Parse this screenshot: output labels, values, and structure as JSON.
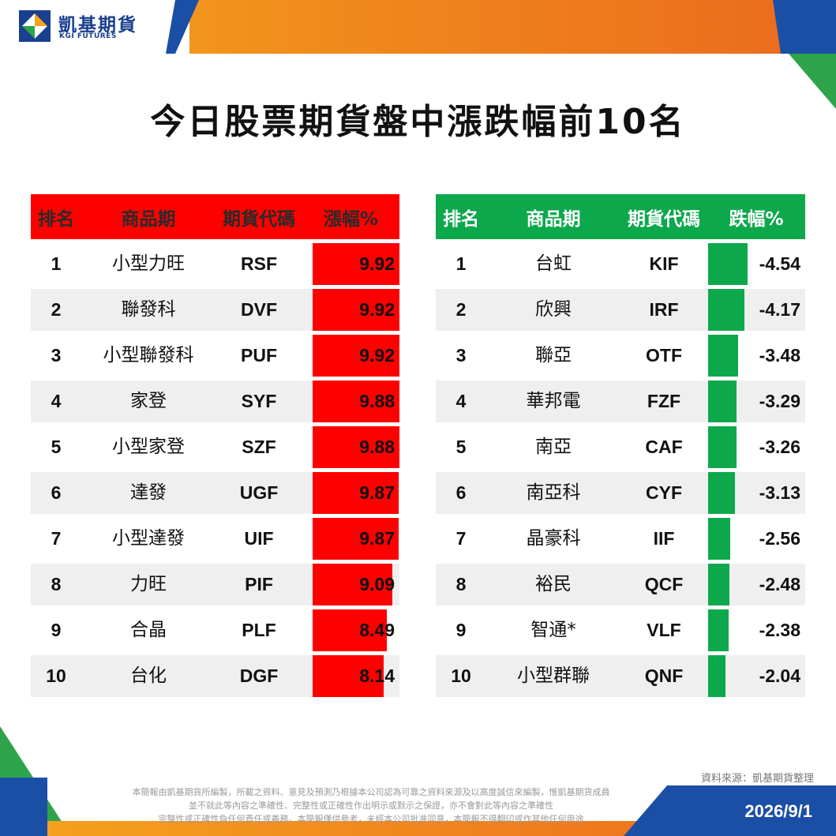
{
  "brand": {
    "name_cn": "凱基期貨",
    "name_en": "KGI FUTURES"
  },
  "title": "今日股票期貨盤中漲跌幅前10名",
  "rise_table": {
    "headers": [
      "排名",
      "商品期",
      "期貨代碼",
      "漲幅%"
    ],
    "rows": [
      {
        "rank": "1",
        "name": "小型力旺",
        "code": "RSF",
        "pct": "9.92"
      },
      {
        "rank": "2",
        "name": "聯發科",
        "code": "DVF",
        "pct": "9.92"
      },
      {
        "rank": "3",
        "name": "小型聯發科",
        "code": "PUF",
        "pct": "9.92"
      },
      {
        "rank": "4",
        "name": "家登",
        "code": "SYF",
        "pct": "9.88"
      },
      {
        "rank": "5",
        "name": "小型家登",
        "code": "SZF",
        "pct": "9.88"
      },
      {
        "rank": "6",
        "name": "達發",
        "code": "UGF",
        "pct": "9.87"
      },
      {
        "rank": "7",
        "name": "小型達發",
        "code": "UIF",
        "pct": "9.87"
      },
      {
        "rank": "8",
        "name": "力旺",
        "code": "PIF",
        "pct": "9.09"
      },
      {
        "rank": "9",
        "name": "合晶",
        "code": "PLF",
        "pct": "8.49"
      },
      {
        "rank": "10",
        "name": "台化",
        "code": "DGF",
        "pct": "8.14"
      }
    ]
  },
  "fall_table": {
    "headers": [
      "排名",
      "商品期",
      "期貨代碼",
      "跌幅%"
    ],
    "rows": [
      {
        "rank": "1",
        "name": "台虹",
        "code": "KIF",
        "pct": "-4.54"
      },
      {
        "rank": "2",
        "name": "欣興",
        "code": "IRF",
        "pct": "-4.17"
      },
      {
        "rank": "3",
        "name": "聯亞",
        "code": "OTF",
        "pct": "-3.48"
      },
      {
        "rank": "4",
        "name": "華邦電",
        "code": "FZF",
        "pct": "-3.29"
      },
      {
        "rank": "5",
        "name": "南亞",
        "code": "CAF",
        "pct": "-3.26"
      },
      {
        "rank": "6",
        "name": "南亞科",
        "code": "CYF",
        "pct": "-3.13"
      },
      {
        "rank": "7",
        "name": "晶豪科",
        "code": "IIF",
        "pct": "-2.56"
      },
      {
        "rank": "8",
        "name": "裕民",
        "code": "QCF",
        "pct": "-2.48"
      },
      {
        "rank": "9",
        "name": "智通*",
        "code": "VLF",
        "pct": "-2.38"
      },
      {
        "rank": "10",
        "name": "小型群聯",
        "code": "QNF",
        "pct": "-2.04"
      }
    ]
  },
  "source": "資料來源：凱基期貨整理",
  "disclaimer": [
    "本簡報由凱基期貨所編製，所載之資料、意見及預測乃根據本公司認為可靠之資料來源及以高度誠信來編製，惟凱基期貨成員",
    "並不就此等內容之準確性、完整性或正確性作出明示或默示之保證，亦不會對此等內容之準確性",
    "完整性或正確性負任何責任或義務。本簡報僅供參考，未經本公司批准同意，本簡報不得翻印或作其他任何用途"
  ],
  "date": "2026/9/1",
  "colors": {
    "rise": "#ff0000",
    "fall": "#0ea84c",
    "brand_blue": "#1b4fa6",
    "brand_orange": "#f08a1c",
    "brand_green": "#2da44a"
  }
}
